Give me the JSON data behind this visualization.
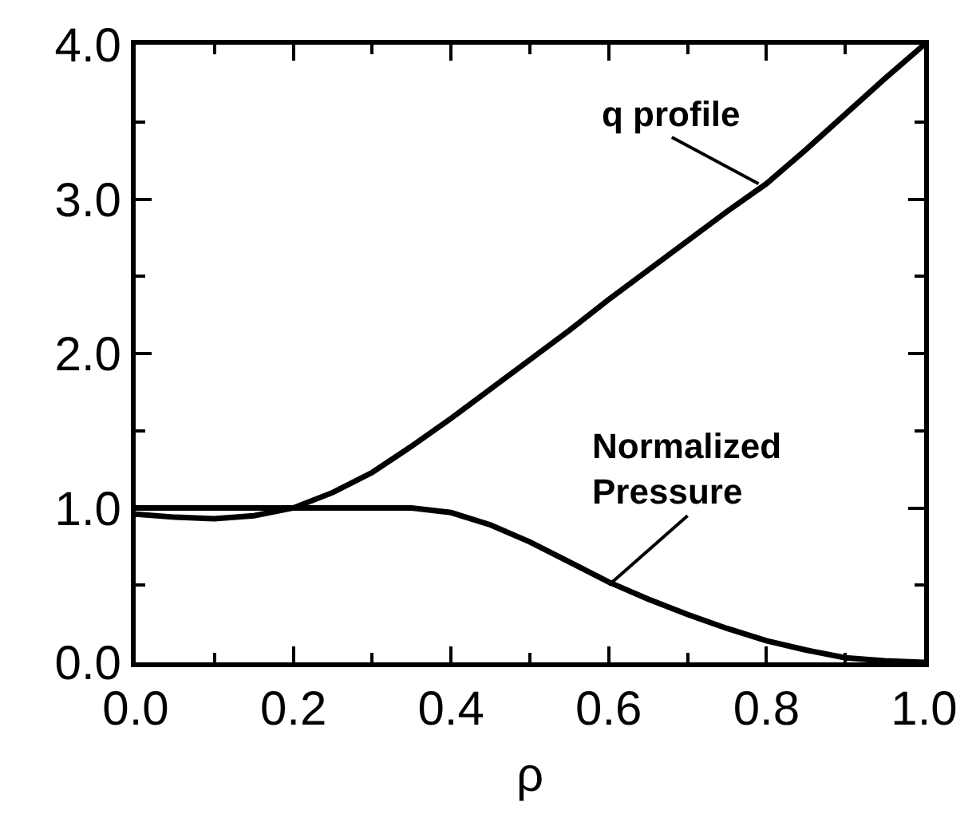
{
  "chart_data": {
    "type": "line",
    "xlabel": "ρ",
    "x": [
      0,
      0.05,
      0.1,
      0.15,
      0.2,
      0.25,
      0.3,
      0.35,
      0.4,
      0.45,
      0.5,
      0.55,
      0.6,
      0.65,
      0.7,
      0.75,
      0.8,
      0.85,
      0.9,
      0.95,
      1.0
    ],
    "series": [
      {
        "color": "#000000",
        "values": [
          0.96,
          0.94,
          0.93,
          0.95,
          1.0,
          1.1,
          1.23,
          1.4,
          1.58,
          1.77,
          1.96,
          2.15,
          2.35,
          2.54,
          2.73,
          2.92,
          3.1,
          3.32,
          3.55,
          3.78,
          4.0
        ]
      },
      {
        "color": "#000000",
        "values": [
          1.0,
          1.0,
          1.0,
          1.0,
          1.0,
          1.0,
          1.0,
          1.0,
          0.97,
          0.89,
          0.78,
          0.65,
          0.52,
          0.41,
          0.31,
          0.22,
          0.14,
          0.08,
          0.03,
          0.01,
          0.0
        ]
      }
    ],
    "annotations": [
      {
        "text": "q profile",
        "x": 0.79,
        "y": 3.1
      },
      {
        "text": "Normalized\nPressure",
        "x": 0.6,
        "y": 0.5
      }
    ],
    "xlim": [
      0,
      1.0
    ],
    "xticks": [
      {
        "value": 0,
        "label": "0.0"
      },
      {
        "value": 0.1,
        "label": null
      },
      {
        "value": 0.2,
        "label": "0.2"
      },
      {
        "value": 0.3,
        "label": null
      },
      {
        "value": 0.4,
        "label": "0.4"
      },
      {
        "value": 0.5,
        "label": null
      },
      {
        "value": 0.6,
        "label": "0.6"
      },
      {
        "value": 0.7,
        "label": null
      },
      {
        "value": 0.8,
        "label": "0.8"
      },
      {
        "value": 0.9,
        "label": null
      },
      {
        "value": 1.0,
        "label": "1.0"
      }
    ],
    "ylim": [
      0,
      4.0
    ],
    "yticks": [
      {
        "value": 0,
        "label": "0.0"
      },
      {
        "value": 0.5,
        "label": null
      },
      {
        "value": 1.0,
        "label": "1.0"
      },
      {
        "value": 1.5,
        "label": null
      },
      {
        "value": 2.0,
        "label": "2.0"
      },
      {
        "value": 2.5,
        "label": null
      },
      {
        "value": 3.0,
        "label": "3.0"
      },
      {
        "value": 3.5,
        "label": null
      },
      {
        "value": 4.0,
        "label": "4.0"
      }
    ],
    "marker": "none",
    "line_style": "solid"
  }
}
